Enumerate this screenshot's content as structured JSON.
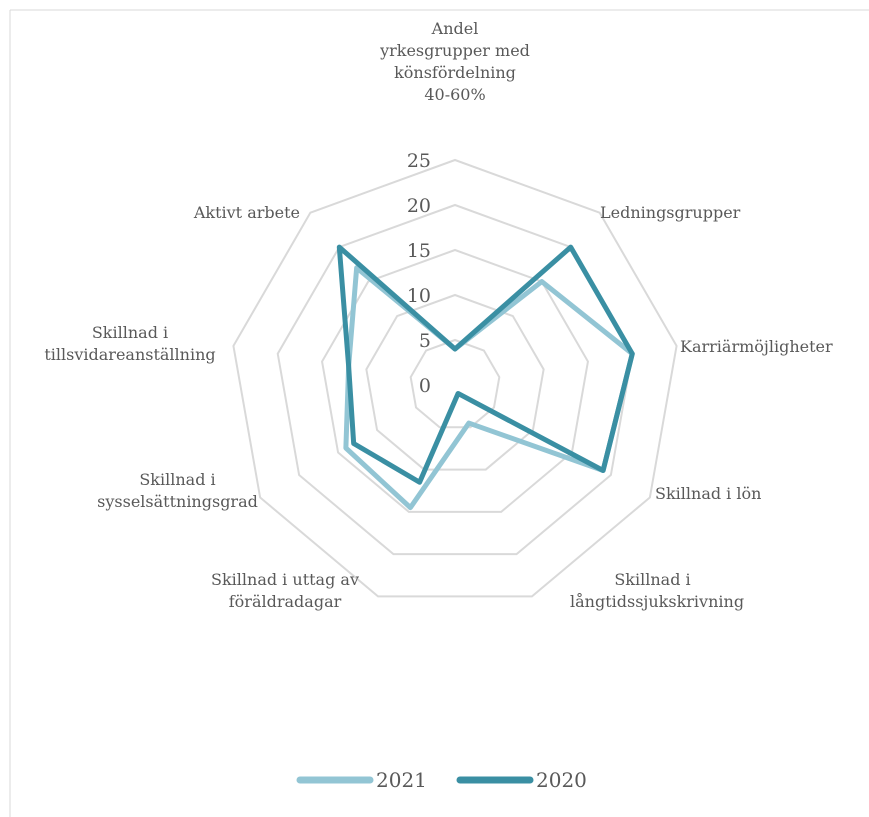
{
  "chart_data": {
    "type": "radar",
    "categories": [
      "Andel yrkesgrupper med könsfördelning 40-60%",
      "Ledningsgrupper",
      "Karriärmöjligheter",
      "Skillnad i lön",
      "Skillnad i långtidssjukskrivning",
      "Skillnad i uttag av föräldradagar",
      "Skillnad i sysselsättningsgrad",
      "Skillnad i tillsvidareanställning",
      "Aktivt arbete"
    ],
    "series": [
      {
        "name": "2021",
        "color": "#92c5d4",
        "values": [
          4,
          15,
          20,
          19,
          4.5,
          14.5,
          14,
          12,
          17
        ]
      },
      {
        "name": "2020",
        "color": "#3a8fa3",
        "values": [
          4,
          20,
          20,
          19,
          1,
          11.5,
          13,
          12,
          20
        ]
      }
    ],
    "ylim": [
      0,
      25
    ],
    "yticks": [
      0,
      5,
      10,
      15,
      20,
      25
    ],
    "grid": true,
    "legend": "bottom"
  }
}
